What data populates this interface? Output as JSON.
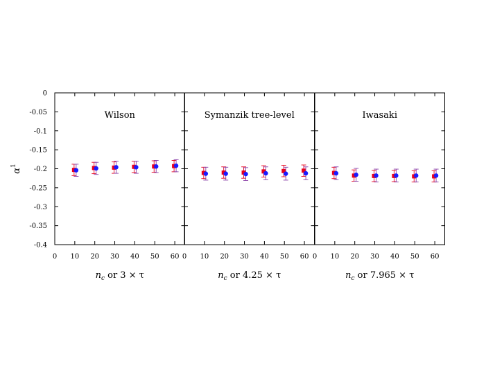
{
  "chart_data": {
    "type": "scatter",
    "ylabel": "α¹",
    "ylim": [
      -0.4,
      0
    ],
    "yticks": [
      0,
      -0.05,
      -0.1,
      -0.15,
      -0.2,
      -0.25,
      -0.3,
      -0.35,
      -0.4
    ],
    "ytick_labels": [
      "0",
      "-0.05",
      "-0.1",
      "-0.15",
      "-0.2",
      "-0.25",
      "-0.3",
      "-0.35",
      "-0.4"
    ],
    "xlim": [
      0,
      65
    ],
    "xticks": [
      0,
      10,
      20,
      30,
      40,
      50,
      60
    ],
    "xtick_labels": [
      "0",
      "10",
      "20",
      "30",
      "40",
      "50",
      "60"
    ],
    "grid": false,
    "colors": {
      "red": "#e8001c",
      "blue": "#1a1aff",
      "red_err": "#e8001c",
      "blue_err": "#8a3fa8"
    },
    "panels": [
      {
        "title": "Wilson",
        "xlabel_var": "n",
        "xlabel_sub": "c",
        "xlabel_rest": " or 3 × τ",
        "series": [
          {
            "color": "red",
            "marker": "square",
            "x": [
              10,
              20,
              30,
              40,
              50,
              60
            ],
            "y": [
              -0.203,
              -0.198,
              -0.197,
              -0.195,
              -0.194,
              -0.193
            ],
            "err": [
              0.015,
              0.015,
              0.015,
              0.015,
              0.015,
              0.015
            ]
          },
          {
            "color": "blue",
            "marker": "circle",
            "x": [
              10,
              20,
              30,
              40,
              50,
              60
            ],
            "y": [
              -0.204,
              -0.199,
              -0.196,
              -0.196,
              -0.194,
              -0.192
            ],
            "err": [
              0.016,
              0.016,
              0.016,
              0.016,
              0.016,
              0.016
            ]
          }
        ]
      },
      {
        "title": "Symanzik tree-level",
        "xlabel_var": "n",
        "xlabel_sub": "c",
        "xlabel_rest": " or 4.25 × τ",
        "series": [
          {
            "color": "red",
            "marker": "square",
            "x": [
              10,
              20,
              30,
              40,
              50,
              60
            ],
            "y": [
              -0.211,
              -0.21,
              -0.21,
              -0.207,
              -0.206,
              -0.205
            ],
            "err": [
              0.015,
              0.015,
              0.015,
              0.015,
              0.015,
              0.015
            ]
          },
          {
            "color": "blue",
            "marker": "circle",
            "x": [
              10,
              20,
              30,
              40,
              50,
              60
            ],
            "y": [
              -0.213,
              -0.213,
              -0.214,
              -0.212,
              -0.213,
              -0.212
            ],
            "err": [
              0.017,
              0.017,
              0.017,
              0.017,
              0.017,
              0.017
            ]
          }
        ]
      },
      {
        "title": "Iwasaki",
        "xlabel_var": "n",
        "xlabel_sub": "c",
        "xlabel_rest": " or 7.965 × τ",
        "series": [
          {
            "color": "red",
            "marker": "square",
            "x": [
              10,
              20,
              30,
              40,
              50,
              60
            ],
            "y": [
              -0.211,
              -0.218,
              -0.219,
              -0.219,
              -0.22,
              -0.22
            ],
            "err": [
              0.015,
              0.015,
              0.015,
              0.015,
              0.015,
              0.015
            ]
          },
          {
            "color": "blue",
            "marker": "circle",
            "x": [
              10,
              20,
              30,
              40,
              50,
              60
            ],
            "y": [
              -0.212,
              -0.216,
              -0.218,
              -0.218,
              -0.218,
              -0.218
            ],
            "err": [
              0.017,
              0.017,
              0.017,
              0.017,
              0.017,
              0.017
            ]
          }
        ]
      }
    ]
  }
}
